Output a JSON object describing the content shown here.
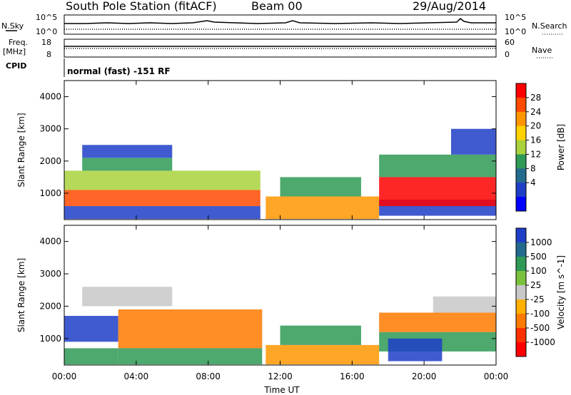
{
  "header": {
    "station": "South Pole Station (fitACF)",
    "beam": "Beam 00",
    "date": "29/Aug/2014"
  },
  "status_panels": {
    "nsky_label": "N.Sky",
    "nsearch_label": "N.Search",
    "log_top": "10^5",
    "log_bottom": "10^0",
    "freq_label_1": "Freq.",
    "freq_label_2": "[MHz]",
    "freq_top": "18",
    "freq_bottom": "8",
    "nave_label": "Nave",
    "nave_top": "60",
    "nave_bottom": "0",
    "cpid_label": "CPID",
    "cpid_text": "normal (fast) -151 RF"
  },
  "x_axis": {
    "label": "Time UT",
    "ticks": [
      "00:00",
      "04:00",
      "08:00",
      "12:00",
      "16:00",
      "20:00",
      "00:00"
    ],
    "range_hours": [
      0,
      24
    ]
  },
  "chart_data": [
    {
      "type": "heatmap",
      "name": "power",
      "xlabel": "Time UT",
      "ylabel": "Slant Range [km]",
      "yticks": [
        1000,
        2000,
        3000,
        4000
      ],
      "ylim": [
        180,
        4500
      ],
      "xlim": [
        0,
        24
      ],
      "colorbar": {
        "label": "Power [dB]",
        "ticks": [
          "28",
          "24",
          "20",
          "16",
          "12",
          "8",
          "4"
        ],
        "colors": [
          "#ff0000",
          "#ff4a00",
          "#ff9600",
          "#ffd200",
          "#a9d23c",
          "#2e9a55",
          "#236b8e",
          "#1f3ec8",
          "#0000ff"
        ]
      },
      "regions": [
        {
          "t": [
            0.0,
            10.9
          ],
          "r": [
            200,
            600
          ],
          "color": "#1f3ec8"
        },
        {
          "t": [
            0.0,
            10.9
          ],
          "r": [
            600,
            1100
          ],
          "color": "#ff4a00"
        },
        {
          "t": [
            0.0,
            10.9
          ],
          "r": [
            1100,
            1700
          ],
          "color": "#a9d23c"
        },
        {
          "t": [
            1.0,
            6.0
          ],
          "r": [
            1700,
            2100
          ],
          "color": "#2e9a55"
        },
        {
          "t": [
            1.0,
            6.0
          ],
          "r": [
            2100,
            2500
          ],
          "color": "#1f3ec8"
        },
        {
          "t": [
            11.2,
            17.5
          ],
          "r": [
            200,
            900
          ],
          "color": "#ff9600"
        },
        {
          "t": [
            12.0,
            16.5
          ],
          "r": [
            900,
            1500
          ],
          "color": "#2e9a55"
        },
        {
          "t": [
            17.5,
            24.0
          ],
          "r": [
            300,
            800
          ],
          "color": "#1f3ec8"
        },
        {
          "t": [
            17.5,
            24.0
          ],
          "r": [
            600,
            1500
          ],
          "color": "#ff0000"
        },
        {
          "t": [
            17.5,
            24.0
          ],
          "r": [
            1500,
            2200
          ],
          "color": "#2e9a55"
        },
        {
          "t": [
            21.5,
            24.0
          ],
          "r": [
            2200,
            3000
          ],
          "color": "#1f3ec8"
        }
      ]
    },
    {
      "type": "heatmap",
      "name": "velocity",
      "xlabel": "Time UT",
      "ylabel": "Slant Range [km]",
      "yticks": [
        1000,
        2000,
        3000,
        4000
      ],
      "ylim": [
        180,
        4500
      ],
      "xlim": [
        0,
        24
      ],
      "colorbar": {
        "label": "Velocity [m s^-1]",
        "ticks": [
          "1000",
          "500",
          "100",
          "25",
          "-25",
          "-100",
          "-500",
          "-1000"
        ],
        "colors": [
          "#1f3ec8",
          "#236b8e",
          "#2e9a55",
          "#7bc23c",
          "#c8c8c8",
          "#ffb000",
          "#ff7a00",
          "#ff3000",
          "#ff0000"
        ]
      },
      "regions": [
        {
          "t": [
            0.0,
            3.0
          ],
          "r": [
            200,
            700
          ],
          "color": "#2e9a55"
        },
        {
          "t": [
            0.0,
            3.0
          ],
          "r": [
            900,
            1700
          ],
          "color": "#1f3ec8"
        },
        {
          "t": [
            1.0,
            6.0
          ],
          "r": [
            2000,
            2600
          ],
          "color": "#c8c8c8"
        },
        {
          "t": [
            3.0,
            11.0
          ],
          "r": [
            700,
            1900
          ],
          "color": "#ff7a00"
        },
        {
          "t": [
            3.0,
            11.0
          ],
          "r": [
            200,
            700
          ],
          "color": "#2e9a55"
        },
        {
          "t": [
            11.2,
            17.5
          ],
          "r": [
            200,
            800
          ],
          "color": "#ff9600"
        },
        {
          "t": [
            12.0,
            16.5
          ],
          "r": [
            800,
            1400
          ],
          "color": "#2e9a55"
        },
        {
          "t": [
            17.5,
            24.0
          ],
          "r": [
            600,
            1200
          ],
          "color": "#2e9a55"
        },
        {
          "t": [
            18.0,
            21.0
          ],
          "r": [
            300,
            1000
          ],
          "color": "#1f3ec8"
        },
        {
          "t": [
            17.5,
            24.0
          ],
          "r": [
            1200,
            1800
          ],
          "color": "#ff7a00"
        },
        {
          "t": [
            20.5,
            24.0
          ],
          "r": [
            1800,
            2300
          ],
          "color": "#c8c8c8"
        }
      ]
    }
  ]
}
